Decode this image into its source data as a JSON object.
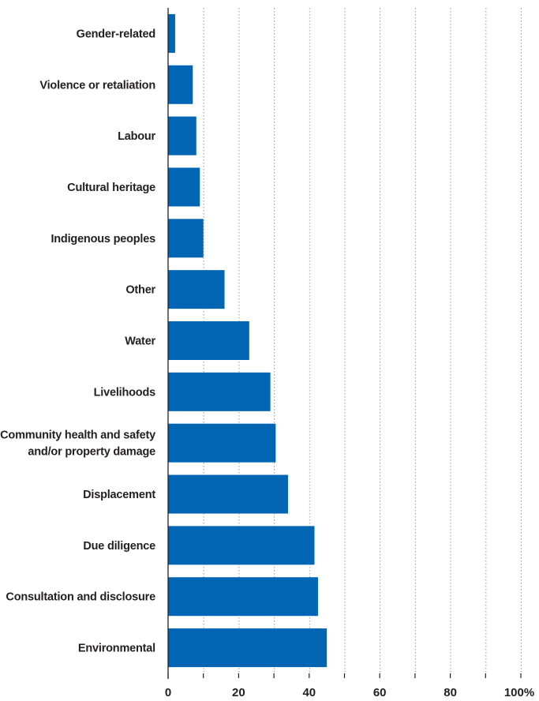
{
  "chart_data": {
    "type": "bar",
    "orientation": "horizontal",
    "categories": [
      "Gender-related",
      "Violence or retaliation",
      "Labour",
      "Cultural heritage",
      "Indigenous peoples",
      "Other",
      "Water",
      "Livelihoods",
      "Community health and safety and/or property damage",
      "Displacement",
      "Due diligence",
      "Consultation and disclosure",
      "Environmental"
    ],
    "category_lines": [
      [
        "Gender-related"
      ],
      [
        "Violence or retaliation"
      ],
      [
        "Labour"
      ],
      [
        "Cultural heritage"
      ],
      [
        "Indigenous peoples"
      ],
      [
        "Other"
      ],
      [
        "Water"
      ],
      [
        "Livelihoods"
      ],
      [
        "Community health and safety",
        "and/or property damage"
      ],
      [
        "Displacement"
      ],
      [
        "Due diligence"
      ],
      [
        "Consultation and disclosure"
      ],
      [
        "Environmental"
      ]
    ],
    "values": [
      2,
      7,
      8,
      9,
      10,
      16,
      23,
      29,
      30.5,
      34,
      41.5,
      42.5,
      45
    ],
    "xlim": [
      0,
      100
    ],
    "xticks": [
      0,
      10,
      20,
      30,
      40,
      50,
      60,
      70,
      80,
      90,
      100
    ],
    "xtick_labels": [
      "0",
      "",
      "20",
      "",
      "40",
      "",
      "60",
      "",
      "80",
      "",
      "100%"
    ],
    "grid": true,
    "bar_color": "#0066b3",
    "title": "",
    "xlabel": "",
    "ylabel": ""
  }
}
